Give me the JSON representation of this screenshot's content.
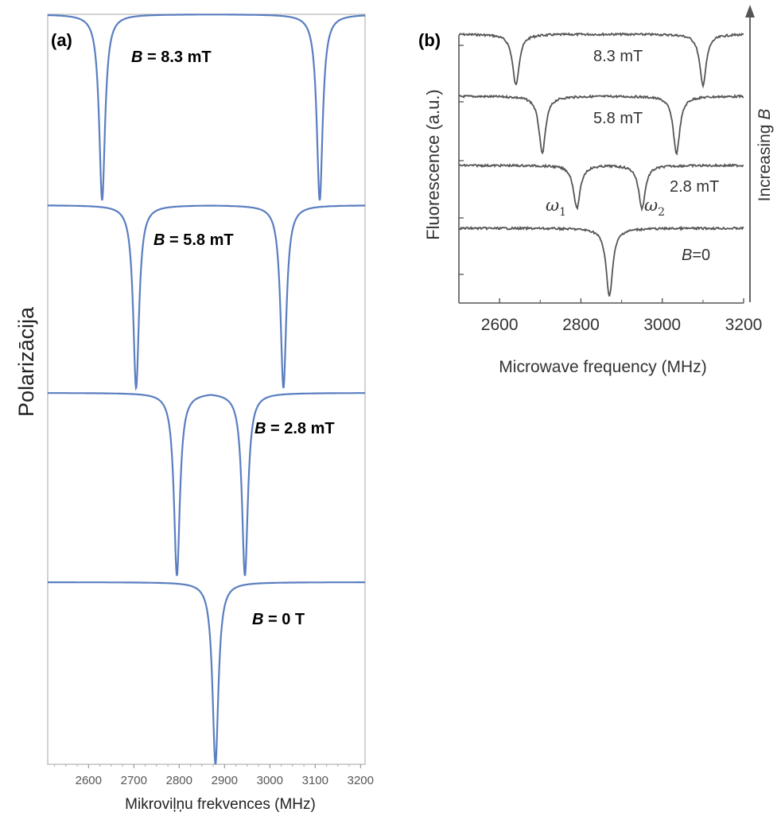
{
  "chart_data": [
    {
      "panel_label": "(a)",
      "type": "line",
      "xlabel": "Mikroviļņu frekvences (MHz)",
      "ylabel": "Polarizācija",
      "xlim": [
        2510,
        3210
      ],
      "xticks": [
        2600,
        2700,
        2800,
        2900,
        3000,
        3100,
        3200
      ],
      "grid": false,
      "line_color": "#5a7ec0",
      "series": [
        {
          "label_prefix": "B",
          "label_value": " = 8.3 mT",
          "dips": [
            2630,
            3110
          ]
        },
        {
          "label_prefix": "B",
          "label_value": " = 5.8 mT",
          "dips": [
            2705,
            3030
          ]
        },
        {
          "label_prefix": "B",
          "label_value": " = 2.8 mT",
          "dips": [
            2795,
            2945
          ]
        },
        {
          "label_prefix": "B",
          "label_value": " = 0 T",
          "dips": [
            2880
          ]
        }
      ]
    },
    {
      "panel_label": "(b)",
      "type": "line",
      "xlabel": "Microwave frequency (MHz)",
      "ylabel": "Fluorescence (a.u.)",
      "xlim": [
        2500,
        3200
      ],
      "xticks": [
        2600,
        2800,
        3000,
        3200
      ],
      "grid": false,
      "line_color": "#555555",
      "arrow_label_prefix": "Increasing ",
      "arrow_label_var": "B",
      "series": [
        {
          "label": "8.3 mT",
          "dips": [
            2640,
            3100
          ]
        },
        {
          "label": "5.8 mT",
          "dips": [
            2705,
            3035
          ]
        },
        {
          "label": "2.8 mT",
          "dips": [
            2790,
            2950
          ]
        },
        {
          "label_var": "B",
          "label_rest": "=0",
          "dips": [
            2870
          ]
        }
      ],
      "annotations": [
        {
          "symbol": "ω",
          "subscript": "1",
          "x": 2790
        },
        {
          "symbol": "ω",
          "subscript": "2",
          "x": 2950
        }
      ]
    }
  ]
}
